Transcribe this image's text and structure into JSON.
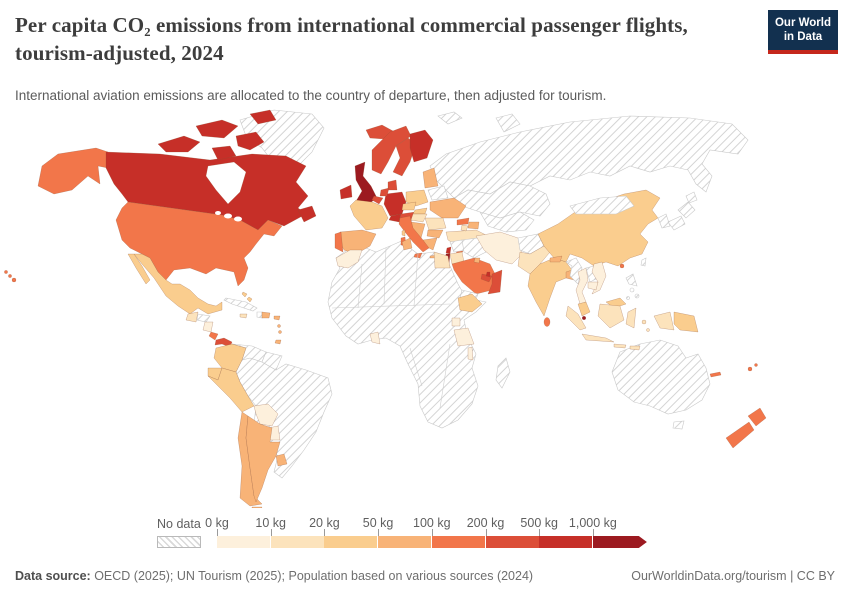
{
  "header": {
    "title": "Per capita CO₂ emissions from international commercial passenger flights, tourism-adjusted, 2024",
    "subtitle": "International aviation emissions are allocated to the country of departure, then adjusted for tourism.",
    "logo_line1": "Our World",
    "logo_line2": "in Data"
  },
  "legend": {
    "no_data_label": "No data",
    "bins": [
      {
        "label": "0 kg",
        "color": "#fdf0dc"
      },
      {
        "label": "10 kg",
        "color": "#fce3bc"
      },
      {
        "label": "20 kg",
        "color": "#facd8e"
      },
      {
        "label": "50 kg",
        "color": "#f8b377"
      },
      {
        "label": "100 kg",
        "color": "#f2764a"
      },
      {
        "label": "200 kg",
        "color": "#dc4e38"
      },
      {
        "label": "500 kg",
        "color": "#c62f28"
      },
      {
        "label": "1,000 kg",
        "color": "#9c1a20"
      }
    ]
  },
  "footer": {
    "datasource_label": "Data source:",
    "datasource_text": " OECD (2025); UN Tourism (2025); Population based on various sources (2024)",
    "license_text": "OurWorldinData.org/tourism | CC BY"
  },
  "chart_data": {
    "type": "choropleth",
    "title": "Per capita CO2 emissions from international commercial passenger flights, tourism-adjusted, 2024",
    "unit": "kg CO2 per capita",
    "bin_edges_kg": [
      0,
      10,
      20,
      50,
      100,
      200,
      500,
      1000
    ],
    "note": "value is bin index into legend.bins; -1 = no data (hatched)",
    "countries": {
      "greenland": -1,
      "canada": 6,
      "usa": 4,
      "hawaii": 4,
      "mexico": 2,
      "guatemala": 1,
      "honduras": -1,
      "nicaragua": 0,
      "costa_rica": 4,
      "panama": 5,
      "cuba": -1,
      "jamaica": 1,
      "haiti": -1,
      "dominican_republic": 3,
      "puerto_rico": 3,
      "bahamas": 2,
      "antilles": 3,
      "trinidad": 3,
      "colombia": 2,
      "venezuela": -1,
      "guyanas": -1,
      "ecuador": 2,
      "peru": 2,
      "brazil": -1,
      "bolivia": 0,
      "paraguay": 0,
      "chile": 3,
      "argentina": 3,
      "tierra_fuego": 3,
      "uruguay": 3,
      "iceland": 5,
      "uk": 7,
      "ireland": 6,
      "norway": 5,
      "sweden": 5,
      "finland": 6,
      "denmark": 5,
      "germany": 6,
      "netherlands": 5,
      "belgium": 5,
      "france": 2,
      "corsica": 2,
      "spain": 3,
      "portugal": 4,
      "italy": 4,
      "sicily": 4,
      "sardinia": 4,
      "switzerland": 6,
      "austria": 5,
      "czechia": 2,
      "poland": 2,
      "baltics": 3,
      "belarus": -1,
      "ukraine": 3,
      "slovakia": 2,
      "hungary": 1,
      "romania": 1,
      "balkans": 3,
      "bulgaria": 3,
      "greece": 3,
      "crete": 3,
      "turkey": 1,
      "cyprus": 4,
      "russia": -1,
      "svalbard": -1,
      "novaya": -1,
      "kazakhstan": -1,
      "central_asia": -1,
      "georgia": 4,
      "azerbaijan": 3,
      "armenia": 1,
      "syria": -1,
      "lebanon": 6,
      "israel": 7,
      "jordan": 1,
      "iraq": -1,
      "saudi_arabia": 4,
      "yemen": -1,
      "oman": 5,
      "uae": 5,
      "kuwait": 3,
      "qatar": 6,
      "iran": 0,
      "afghanistan": -1,
      "pakistan": 1,
      "india": 2,
      "nepal": 3,
      "bangladesh": 3,
      "sri_lanka": 4,
      "china": 2,
      "mongolia": -1,
      "korea": -1,
      "japan": -1,
      "taiwan": -1,
      "hong_kong": 4,
      "myanmar": -1,
      "thailand": 0,
      "laos": -1,
      "vietnam": 0,
      "cambodia": 0,
      "malaysia_peninsula": 2,
      "malaysia_borneo": 2,
      "singapore": 7,
      "sumatra": 1,
      "java": 1,
      "kalimantan": 1,
      "sulawesi": 1,
      "lesser_sunda": 1,
      "moluccas": 1,
      "west_papua": 1,
      "papua_new_guinea": 2,
      "philippines": -1,
      "australia": -1,
      "tasmania": -1,
      "new_zealand_north": 4,
      "new_zealand_south": 4,
      "fiji": 4,
      "new_caledonia": 4,
      "africa": -1,
      "madagascar": -1,
      "morocco": 0,
      "tunisia": 3,
      "egypt": 1,
      "ghana": 0,
      "ethiopia": 2,
      "uganda": 0,
      "tanzania": 0,
      "malawi": 0
    }
  }
}
